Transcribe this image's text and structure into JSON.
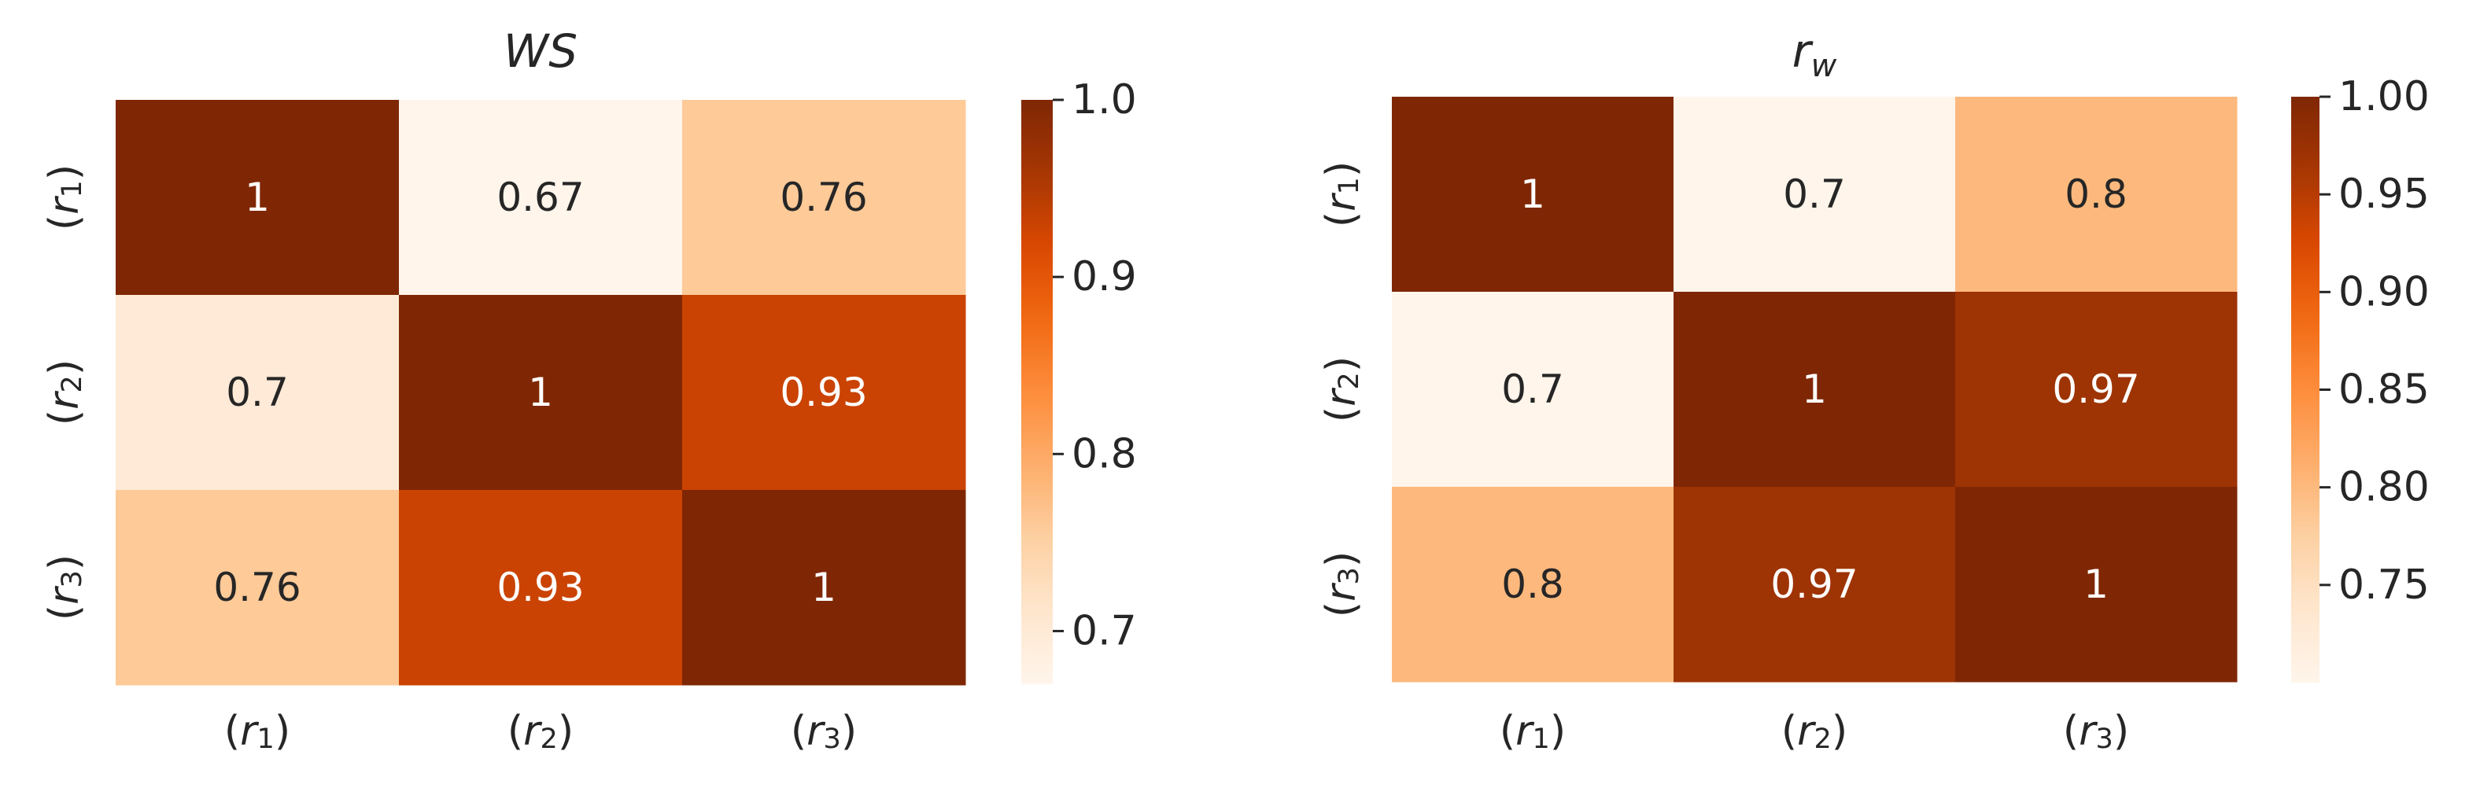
{
  "chart_data": [
    {
      "type": "heatmap",
      "title": "WS",
      "rows": [
        "(r1)",
        "(r2)",
        "(r3)"
      ],
      "columns": [
        "(r1)",
        "(r2)",
        "(r3)"
      ],
      "values": [
        [
          1,
          0.67,
          0.76
        ],
        [
          0.7,
          1,
          0.93
        ],
        [
          0.76,
          0.93,
          1
        ]
      ],
      "value_labels": [
        [
          "1",
          "0.67",
          "0.76"
        ],
        [
          "0.7",
          "1",
          "0.93"
        ],
        [
          "0.76",
          "0.93",
          "1"
        ]
      ],
      "colorbar": {
        "range": [
          0.67,
          1.0
        ],
        "ticks": [
          1.0,
          0.9,
          0.8,
          0.7
        ],
        "tick_labels": [
          "1.0",
          "0.9",
          "0.8",
          "0.7"
        ]
      },
      "colormap": "Oranges"
    },
    {
      "type": "heatmap",
      "title": "r_w",
      "rows": [
        "(r1)",
        "(r2)",
        "(r3)"
      ],
      "columns": [
        "(r1)",
        "(r2)",
        "(r3)"
      ],
      "values": [
        [
          1,
          0.7,
          0.8
        ],
        [
          0.7,
          1,
          0.97
        ],
        [
          0.8,
          0.97,
          1
        ]
      ],
      "value_labels": [
        [
          "1",
          "0.7",
          "0.8"
        ],
        [
          "0.7",
          "1",
          "0.97"
        ],
        [
          "0.8",
          "0.97",
          "1"
        ]
      ],
      "colorbar": {
        "range": [
          0.7,
          1.0
        ],
        "ticks": [
          1.0,
          0.95,
          0.9,
          0.85,
          0.8,
          0.75
        ],
        "tick_labels": [
          "1.00",
          "0.95",
          "0.90",
          "0.85",
          "0.80",
          "0.75"
        ]
      },
      "colormap": "Oranges"
    }
  ]
}
